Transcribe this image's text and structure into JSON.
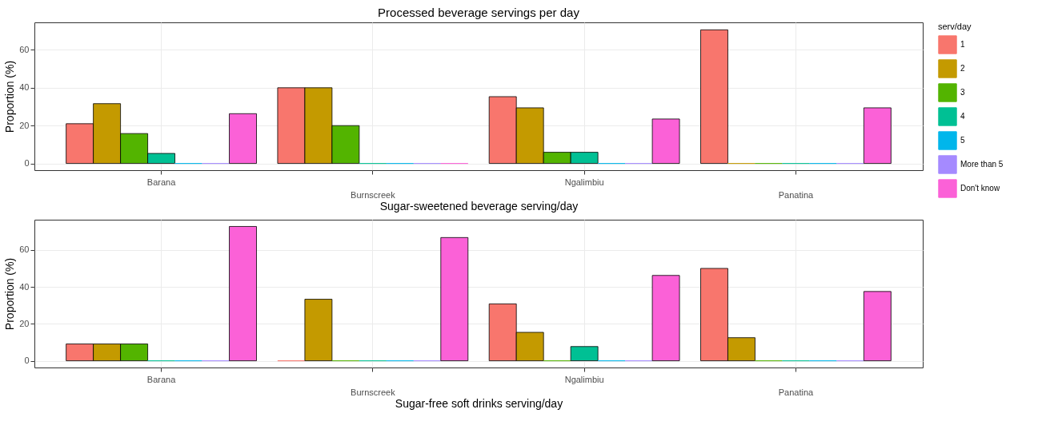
{
  "chart_data": [
    {
      "type": "bar",
      "title": "Processed beverage servings per day",
      "xlabel": "Sugar-sweetened beverage serving/day",
      "ylabel": "Proportion (%)",
      "legend_title": "serv/day",
      "legend": "right",
      "grid": true,
      "categories": [
        "Barana",
        "Burnscreek",
        "Ngalimbiu",
        "Panatina"
      ],
      "ylim": [
        -3.55,
        74.55
      ],
      "yticks": [
        0,
        20,
        40,
        60
      ],
      "series": [
        {
          "name": "1",
          "color": "#f8766d",
          "values": [
            21,
            40,
            35.3,
            70.6
          ]
        },
        {
          "name": "2",
          "color": "#c49a00",
          "values": [
            31.6,
            40,
            29.4,
            0
          ]
        },
        {
          "name": "3",
          "color": "#53b400",
          "values": [
            15.8,
            20,
            5.9,
            0
          ]
        },
        {
          "name": "4",
          "color": "#00c094",
          "values": [
            5.3,
            0,
            5.9,
            0
          ]
        },
        {
          "name": "5",
          "color": "#00b6eb",
          "values": [
            0,
            0,
            0,
            0
          ]
        },
        {
          "name": "More than 5",
          "color": "#a58aff",
          "values": [
            0,
            0,
            0,
            0
          ]
        },
        {
          "name": "Don't know",
          "color": "#fb61d7",
          "values": [
            26.3,
            0,
            23.5,
            29.4
          ]
        }
      ]
    },
    {
      "type": "bar",
      "xlabel": "Sugar-free soft drinks serving/day",
      "ylabel": "Proportion (%)",
      "grid": true,
      "categories": [
        "Barana",
        "Burnscreek",
        "Ngalimbiu",
        "Panatina"
      ],
      "ylim": [
        -3.64,
        76.36
      ],
      "yticks": [
        0,
        20,
        40,
        60
      ],
      "series": [
        {
          "name": "1",
          "color": "#f8766d",
          "values": [
            9.1,
            0,
            30.8,
            50
          ]
        },
        {
          "name": "2",
          "color": "#c49a00",
          "values": [
            9.1,
            33.3,
            15.4,
            12.5
          ]
        },
        {
          "name": "3",
          "color": "#53b400",
          "values": [
            9.1,
            0,
            0,
            0
          ]
        },
        {
          "name": "4",
          "color": "#00c094",
          "values": [
            0,
            0,
            7.7,
            0
          ]
        },
        {
          "name": "5",
          "color": "#00b6eb",
          "values": [
            0,
            0,
            0,
            0
          ]
        },
        {
          "name": "More than 5",
          "color": "#a58aff",
          "values": [
            0,
            0,
            0,
            0
          ]
        },
        {
          "name": "Don't know",
          "color": "#fb61d7",
          "values": [
            72.7,
            66.7,
            46.2,
            37.5
          ]
        }
      ]
    }
  ]
}
